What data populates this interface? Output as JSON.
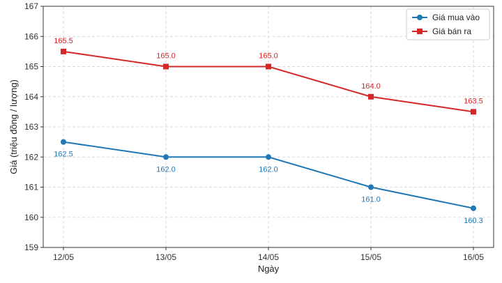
{
  "chart_data": {
    "type": "line",
    "title": "",
    "xlabel": "Ngày",
    "ylabel": "Giá (triệu đồng / lượng)",
    "categories": [
      "12/05",
      "13/05",
      "14/05",
      "15/05",
      "16/05"
    ],
    "ylim": [
      159,
      167
    ],
    "yticks": [
      "159",
      "160",
      "161",
      "162",
      "163",
      "164",
      "165",
      "166",
      "167"
    ],
    "grid": true,
    "legend_position": "top-right",
    "series": [
      {
        "name": "Giá mua vào",
        "color": "#1f77b4",
        "marker": "circle",
        "values": [
          162.5,
          162.0,
          162.0,
          161.0,
          160.3
        ],
        "labels": [
          "162.5",
          "162.0",
          "162.0",
          "161.0",
          "160.3"
        ]
      },
      {
        "name": "Giá bán ra",
        "color": "#d62728",
        "marker": "square",
        "values": [
          165.5,
          165.0,
          165.0,
          164.0,
          163.5
        ],
        "labels": [
          "165.5",
          "165.0",
          "165.0",
          "164.0",
          "163.5"
        ]
      }
    ]
  }
}
